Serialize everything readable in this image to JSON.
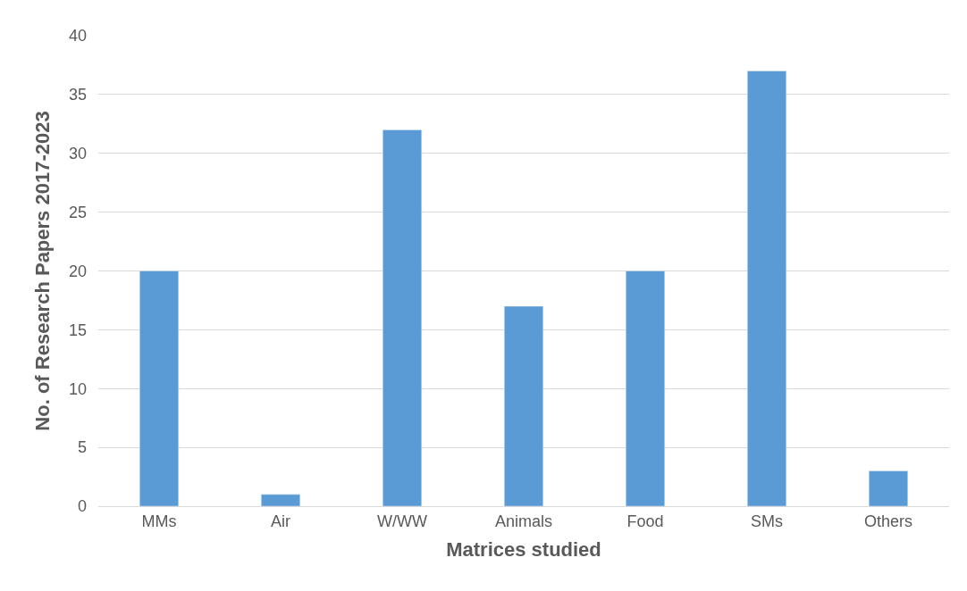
{
  "chart_data": {
    "type": "bar",
    "xlabel": "Matrices studied",
    "ylabel": "No. of Research Papers 2017-2023",
    "categories": [
      "MMs",
      "Air",
      "W/WW",
      "Animals",
      "Food",
      "SMs",
      "Others"
    ],
    "values": [
      20,
      1,
      32,
      17,
      20,
      37,
      3
    ],
    "color": "#5b9bd5",
    "ylim": [
      0,
      40
    ],
    "yticks": [
      0,
      5,
      10,
      15,
      20,
      25,
      30,
      35,
      40
    ],
    "grid": "y"
  }
}
